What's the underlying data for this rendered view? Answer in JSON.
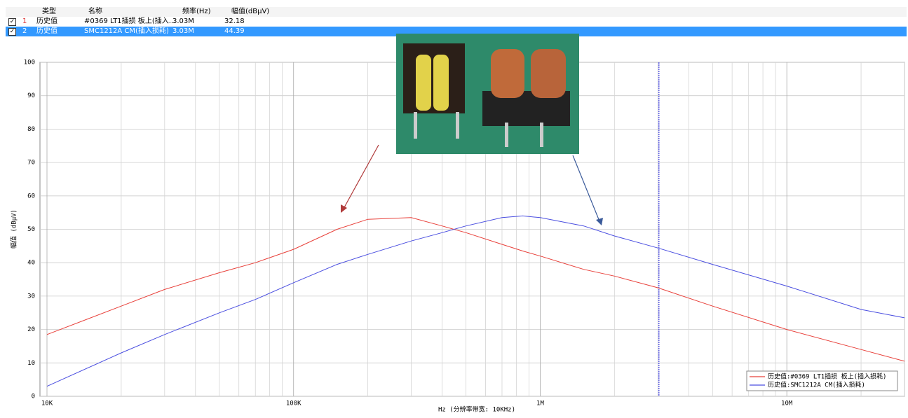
{
  "table": {
    "header": [
      "类型",
      "名称",
      "频率(Hz)",
      "幅值(dBμV)"
    ],
    "rows": [
      [
        "1",
        "历史值",
        "#0369 LT1插损 板上(插入...",
        "3.03M",
        "32.18"
      ],
      [
        "2",
        "历史值",
        "SMC1212A CM(插入损耗)",
        "3.03M",
        "44.39"
      ]
    ]
  },
  "chart_data": {
    "type": "line",
    "x_label": "Hz  (分辨率带宽: 10KHz)",
    "y_label": "幅值 (dBμV)",
    "x": [
      10000,
      20000,
      30000,
      50000,
      70000,
      100000,
      150000,
      200000,
      300000,
      400000,
      500000,
      700000,
      850000,
      1000000,
      1500000,
      2000000,
      3000000,
      5000000,
      10000000,
      20000000,
      30000000
    ],
    "series": [
      {
        "name": "历史值:#0369 LT1插损 板上(插入损耗)",
        "color": "#e8403a",
        "values": [
          18.5,
          27,
          32,
          37,
          40,
          44,
          50,
          53,
          53.5,
          51,
          49,
          45.5,
          43.5,
          42,
          38,
          36,
          32.5,
          27,
          20,
          14,
          10.5
        ]
      },
      {
        "name": "历史值:SMC1212A CM(插入损耗)",
        "color": "#4a4ee0",
        "values": [
          3,
          13,
          18.5,
          25,
          29,
          34,
          39.5,
          42.5,
          46.5,
          49,
          51,
          53.5,
          54,
          53.5,
          51,
          48,
          44.4,
          39.5,
          33,
          26,
          23.5
        ]
      }
    ],
    "xscale": "log",
    "xlim": [
      10000,
      30000000
    ],
    "xticks": [
      {
        "value": 10000,
        "label": "10K"
      },
      {
        "value": 100000,
        "label": "100K"
      },
      {
        "value": 1000000,
        "label": "1M"
      },
      {
        "value": 10000000,
        "label": "10M"
      }
    ],
    "xminorticks": [
      20000,
      30000,
      40000,
      50000,
      60000,
      70000,
      80000,
      90000,
      200000,
      300000,
      400000,
      500000,
      600000,
      700000,
      800000,
      900000,
      2000000,
      3000000,
      4000000,
      5000000,
      6000000,
      7000000,
      8000000,
      9000000,
      20000000,
      30000000
    ],
    "ylim": [
      0,
      100
    ],
    "yticks": [
      0,
      10,
      20,
      30,
      40,
      50,
      60,
      70,
      80,
      90,
      100
    ],
    "grid": true,
    "marker_x": 3030000,
    "marker_color": "#3a3ae0",
    "legend": "lower right"
  }
}
